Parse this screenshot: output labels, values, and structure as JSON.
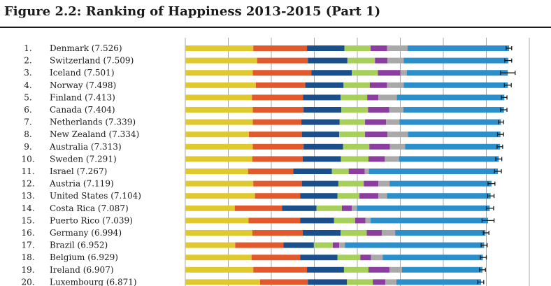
{
  "title": "Figure 2.2: Ranking of Happiness 2013-2015 (Part 1)",
  "colors": {
    "segments": [
      "#e0c92e",
      "#e25a2c",
      "#1a4f8b",
      "#a6d05a",
      "#8b3ea0",
      "#a9a9a9",
      "#2b8fcc"
    ],
    "gridline": "#a8a8a8",
    "text": "#1a1a1a"
  },
  "chart_data": {
    "type": "bar",
    "orientation": "horizontal",
    "stacked": true,
    "grid": true,
    "legend": "none",
    "xlim": [
      0,
      8
    ],
    "countries": [
      {
        "rank": "1.",
        "name": "Denmark (7.526)",
        "segments": [
          1.58,
          1.25,
          0.87,
          0.61,
          0.38,
          0.48,
          2.36
        ],
        "ci": [
          7.46,
          7.59
        ]
      },
      {
        "rank": "2.",
        "name": "Switzerland (7.509)",
        "segments": [
          1.67,
          1.18,
          0.92,
          0.64,
          0.29,
          0.38,
          2.43
        ],
        "ci": [
          7.43,
          7.59
        ]
      },
      {
        "rank": "3.",
        "name": "Iceland (7.501)",
        "segments": [
          1.57,
          1.36,
          0.94,
          0.61,
          0.52,
          0.15,
          2.35
        ],
        "ci": [
          7.33,
          7.67
        ]
      },
      {
        "rank": "4.",
        "name": "Norway (7.498)",
        "segments": [
          1.64,
          1.15,
          0.89,
          0.61,
          0.4,
          0.39,
          2.42
        ],
        "ci": [
          7.42,
          7.58
        ]
      },
      {
        "rank": "5.",
        "name": "Finland (7.413)",
        "segments": [
          1.55,
          1.19,
          0.87,
          0.62,
          0.26,
          0.43,
          2.5
        ],
        "ci": [
          7.35,
          7.48
        ]
      },
      {
        "rank": "6.",
        "name": "Canada (7.404)",
        "segments": [
          1.57,
          1.18,
          0.88,
          0.62,
          0.49,
          0.33,
          2.34
        ],
        "ci": [
          7.33,
          7.48
        ]
      },
      {
        "rank": "7.",
        "name": "Netherlands (7.339)",
        "segments": [
          1.57,
          1.13,
          0.89,
          0.59,
          0.49,
          0.31,
          2.36
        ],
        "ci": [
          7.28,
          7.4
        ]
      },
      {
        "rank": "8.",
        "name": "New Zealand (7.334)",
        "segments": [
          1.48,
          1.23,
          0.87,
          0.6,
          0.52,
          0.48,
          2.15
        ],
        "ci": [
          7.26,
          7.4
        ]
      },
      {
        "rank": "9.",
        "name": "Australia (7.313)",
        "segments": [
          1.57,
          1.18,
          0.92,
          0.61,
          0.48,
          0.35,
          2.21
        ],
        "ci": [
          7.25,
          7.38
        ]
      },
      {
        "rank": "10.",
        "name": "Sweden (7.291)",
        "segments": [
          1.56,
          1.17,
          0.89,
          0.64,
          0.38,
          0.33,
          2.32
        ],
        "ci": [
          7.22,
          7.36
        ]
      },
      {
        "rank": "11.",
        "name": "Israel (7.267)",
        "segments": [
          1.46,
          1.05,
          0.9,
          0.39,
          0.37,
          0.1,
          3.0
        ],
        "ci": [
          7.19,
          7.35
        ]
      },
      {
        "rank": "12.",
        "name": "Austria (7.119)",
        "segments": [
          1.58,
          1.13,
          0.85,
          0.59,
          0.34,
          0.26,
          2.37
        ],
        "ci": [
          7.04,
          7.2
        ]
      },
      {
        "rank": "13.",
        "name": "United States (7.104)",
        "segments": [
          1.62,
          1.05,
          0.87,
          0.51,
          0.44,
          0.2,
          2.41
        ],
        "ci": [
          7.03,
          7.18
        ]
      },
      {
        "rank": "14.",
        "name": "Costa Rica (7.087)",
        "segments": [
          1.15,
          1.1,
          0.8,
          0.59,
          0.23,
          0.12,
          3.09
        ],
        "ci": [
          7.0,
          7.17
        ]
      },
      {
        "rank": "15.",
        "name": "Puerto Rico (7.039)",
        "segments": [
          1.47,
          1.2,
          0.79,
          0.49,
          0.24,
          0.12,
          2.73
        ],
        "ci": [
          6.9,
          7.18
        ]
      },
      {
        "rank": "16.",
        "name": "Germany (6.994)",
        "segments": [
          1.56,
          1.17,
          0.88,
          0.61,
          0.35,
          0.31,
          2.1
        ],
        "ci": [
          6.93,
          7.06
        ]
      },
      {
        "rank": "17.",
        "name": "Brazil (6.952)",
        "segments": [
          1.16,
          1.12,
          0.71,
          0.44,
          0.15,
          0.13,
          3.24
        ],
        "ci": [
          6.88,
          7.02
        ]
      },
      {
        "rank": "18.",
        "name": "Belgium (6.929)",
        "segments": [
          1.54,
          1.13,
          0.87,
          0.53,
          0.25,
          0.27,
          2.33
        ],
        "ci": [
          6.86,
          7.0
        ]
      },
      {
        "rank": "19.",
        "name": "Ireland (6.907)",
        "segments": [
          1.58,
          1.25,
          0.86,
          0.57,
          0.49,
          0.29,
          1.87
        ],
        "ci": [
          6.84,
          6.98
        ]
      },
      {
        "rank": "20.",
        "name": "Luxembourg (6.871)",
        "segments": [
          1.74,
          1.11,
          0.91,
          0.6,
          0.29,
          0.26,
          1.97
        ],
        "ci": [
          6.8,
          6.94
        ]
      }
    ]
  }
}
